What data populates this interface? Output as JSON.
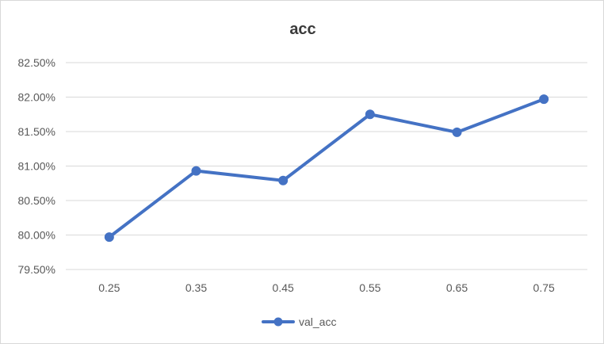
{
  "chart_data": {
    "type": "line",
    "title": "acc",
    "xlabel": "",
    "ylabel": "",
    "x": [
      "0.25",
      "0.35",
      "0.45",
      "0.55",
      "0.65",
      "0.75"
    ],
    "series": [
      {
        "name": "val_acc",
        "values": [
          79.97,
          80.93,
          80.79,
          81.75,
          81.49,
          81.97
        ],
        "color": "#4472c4"
      }
    ],
    "ylim": [
      79.5,
      82.5
    ],
    "yticks": [
      79.5,
      80.0,
      80.5,
      81.0,
      81.5,
      82.0,
      82.5
    ],
    "ytick_labels": [
      "79.50%",
      "80.00%",
      "80.50%",
      "81.00%",
      "81.50%",
      "82.00%",
      "82.50%"
    ],
    "grid": true,
    "legend": "bottom",
    "gridline_color": "#d9d9d9"
  }
}
